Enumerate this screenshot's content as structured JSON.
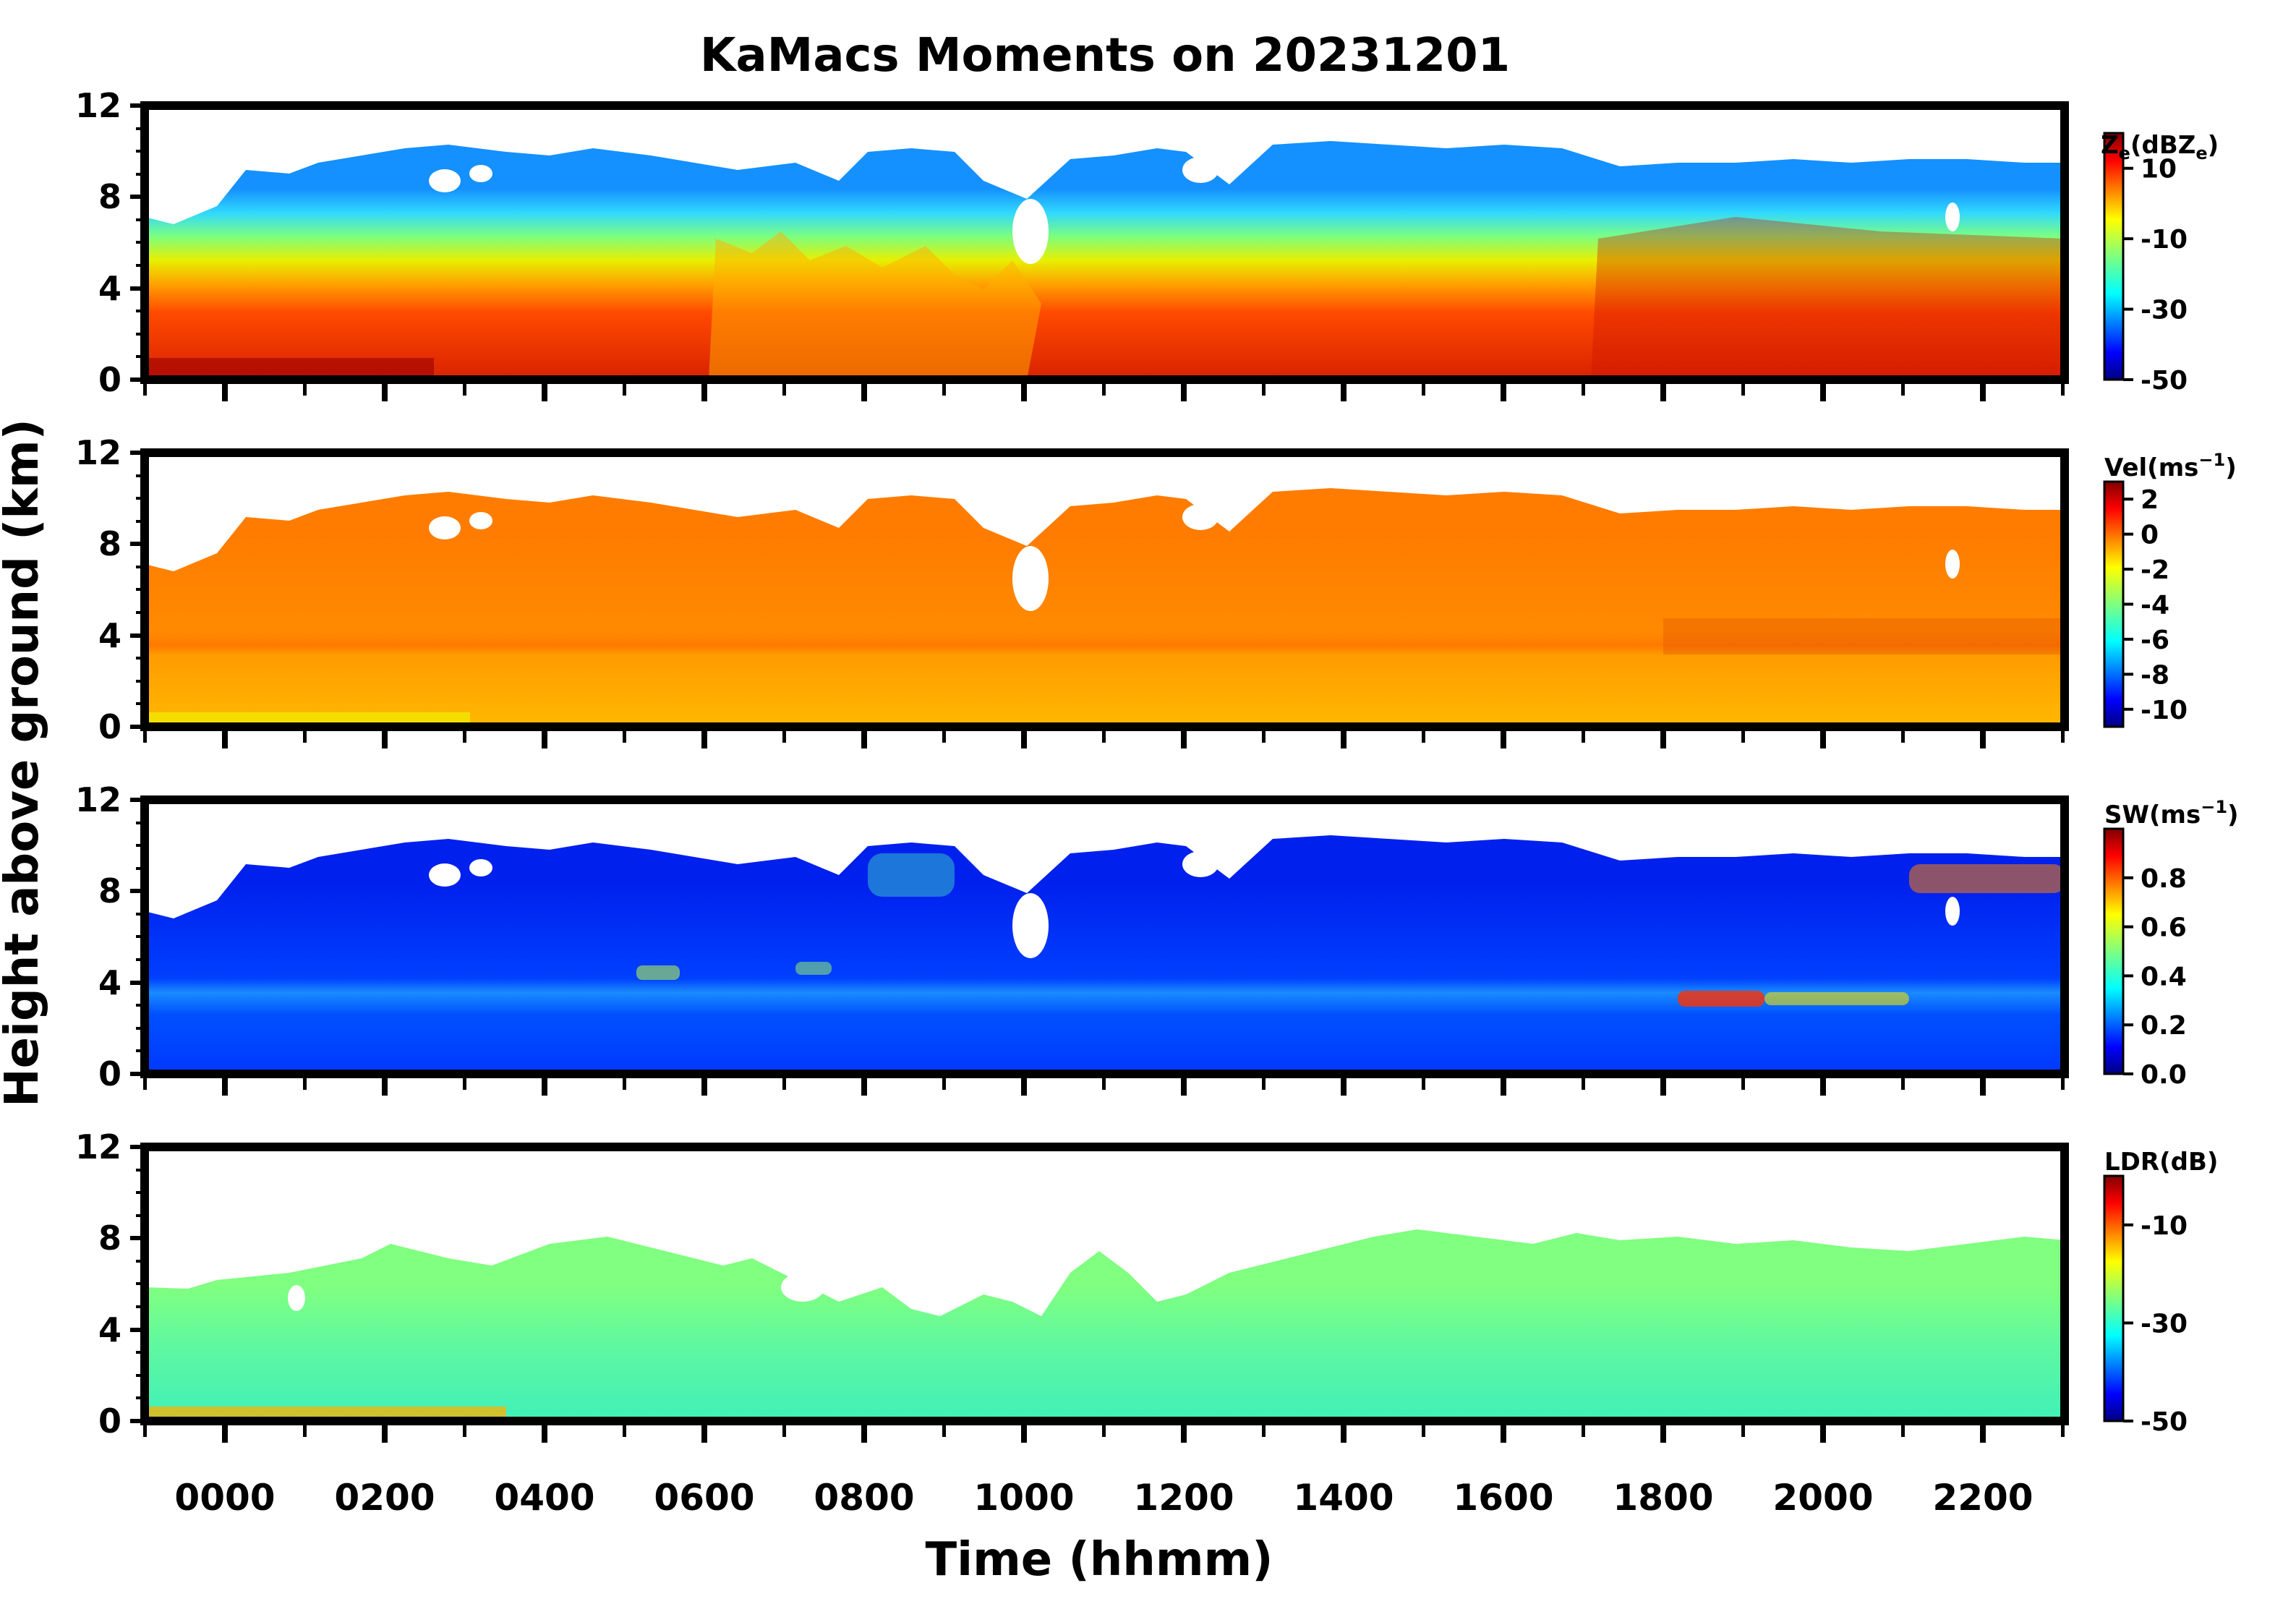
{
  "chart_data": {
    "type": "heatmap",
    "title": "KaMacs Moments on 20231201",
    "xlabel": "Time (hhmm)",
    "ylabel": "Height above ground (km)",
    "x_ticklabels": [
      "0000",
      "0200",
      "0400",
      "0600",
      "0800",
      "1000",
      "1200",
      "1400",
      "1600",
      "1800",
      "2000",
      "2200"
    ],
    "y_ticklabels": [
      "0",
      "4",
      "8",
      "12"
    ],
    "ylim": [
      0,
      12
    ],
    "colormap": "jet",
    "panels": [
      {
        "variable": "Ze",
        "colorbar_label_main": "Z",
        "colorbar_label_sub": "e",
        "colorbar_label_rest": "(dBZ",
        "colorbar_label_sub2": "e",
        "colorbar_label_end": ")",
        "clim": [
          -50,
          20
        ],
        "colorbar_ticks": [
          "10",
          "-10",
          "-30",
          "-50"
        ],
        "colorbar_tick_values": [
          10,
          -10,
          -30,
          -50
        ]
      },
      {
        "variable": "Vel",
        "colorbar_label_main": "Vel(ms",
        "colorbar_label_sup": "−1",
        "colorbar_label_end": ")",
        "clim": [
          -11,
          3
        ],
        "colorbar_ticks": [
          "2",
          "0",
          "-2",
          "-4",
          "-6",
          "-8",
          "-10"
        ],
        "colorbar_tick_values": [
          2,
          0,
          -2,
          -4,
          -6,
          -8,
          -10
        ]
      },
      {
        "variable": "SW",
        "colorbar_label_main": "SW(ms",
        "colorbar_label_sup": "−1",
        "colorbar_label_end": ")",
        "clim": [
          0,
          1
        ],
        "colorbar_ticks": [
          "0.8",
          "0.6",
          "0.4",
          "0.2",
          "0.0"
        ],
        "colorbar_tick_values": [
          0.8,
          0.6,
          0.4,
          0.2,
          0.0
        ]
      },
      {
        "variable": "LDR",
        "colorbar_label_main": "LDR(dB)",
        "clim": [
          -50,
          0
        ],
        "colorbar_ticks": [
          "-10",
          "-30",
          "-50"
        ],
        "colorbar_tick_values": [
          -10,
          -30,
          -50
        ]
      }
    ]
  }
}
